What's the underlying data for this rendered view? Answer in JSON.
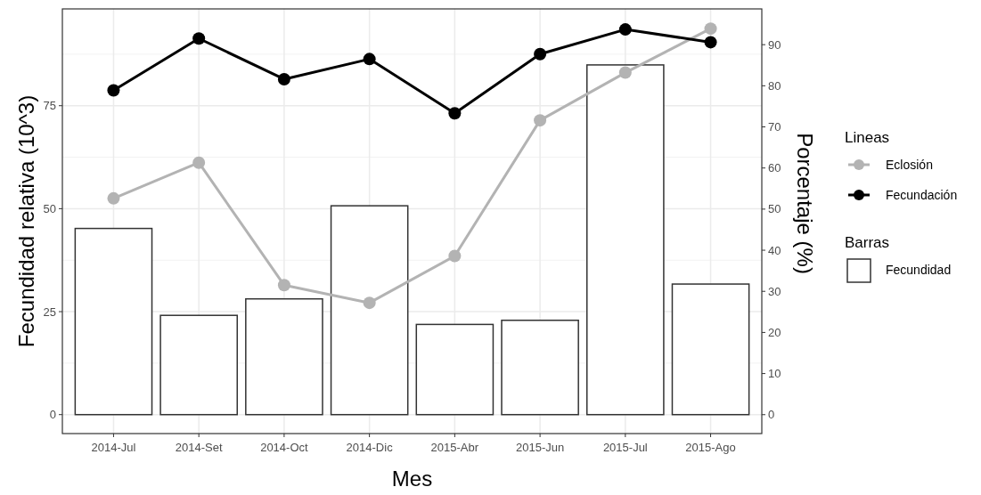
{
  "chart_data": {
    "type": "bar",
    "xlabel": "Mes",
    "ylabel": "Fecundidad relativa (10^3)",
    "y2label": "Porcentaje (%)",
    "legend_title": [
      "Lineas",
      "Barras"
    ],
    "categories": [
      "2014-Jul",
      "2014-Set",
      "2014-Oct",
      "2014-Dic",
      "2015-Abr",
      "2015-Jun",
      "2015-Jul",
      "2015-Ago"
    ],
    "series": [
      {
        "name": "Fecundidad",
        "color": "#ffffff",
        "values": [
          45.2,
          24.1,
          28.1,
          50.7,
          21.9,
          22.9,
          84.9,
          31.7
        ]
      },
      {
        "name": "Eclosión",
        "type": "line",
        "axis": "y2",
        "color": "#b3b3b3",
        "values": [
          52.6,
          61.3,
          31.5,
          27.2,
          38.6,
          71.6,
          83.2,
          93.9
        ]
      },
      {
        "name": "Fecundación",
        "type": "line",
        "axis": "y2",
        "color": "#000000",
        "values": [
          78.9,
          91.5,
          81.6,
          86.5,
          73.3,
          87.7,
          93.7,
          90.6
        ]
      }
    ],
    "ylim": [
      -4.6,
      98.5
    ],
    "yticks": [
      0,
      25,
      50,
      75
    ],
    "y2lim": [
      -4.6,
      98.7
    ],
    "y2ticks": [
      0,
      10,
      20,
      30,
      40,
      50,
      60,
      70,
      80,
      90
    ],
    "grid": true,
    "legend": "right",
    "marker": "circle",
    "line_style": "solid"
  }
}
